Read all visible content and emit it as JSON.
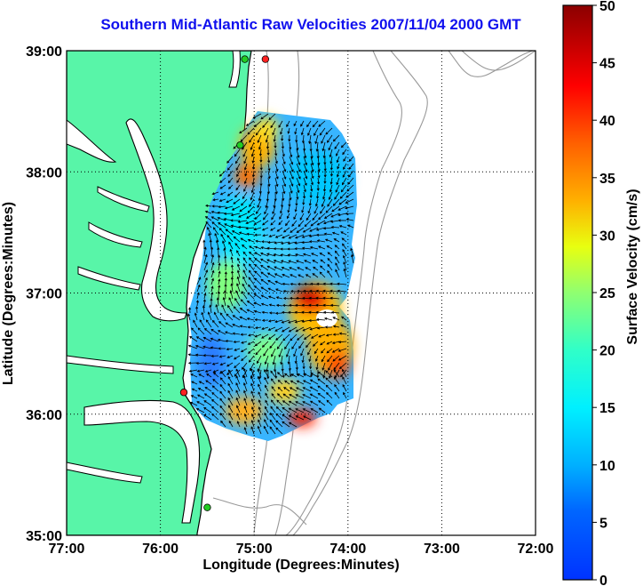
{
  "title": "Southern Mid-Atlantic Raw Velocities 2007/11/04 2000 GMT",
  "map": {
    "xlabel": "Longitude (Degrees:Minutes)",
    "ylabel": "Latitude (Degrees:Minutes)",
    "x_ticks": [
      "77:00",
      "76:00",
      "75:00",
      "74:00",
      "73:00",
      "72:00"
    ],
    "y_ticks": [
      "39:00",
      "38:00",
      "37:00",
      "36:00",
      "35:00"
    ],
    "lon_range": [
      -77,
      -72
    ],
    "lat_range": [
      35,
      39
    ],
    "grid": "dotted",
    "colors": {
      "land": "#58f5a8",
      "coast": "#000000",
      "bathymetry": "#999999"
    },
    "stations": [
      {
        "lon": -74.88,
        "lat": 38.93,
        "color": "#ff2222"
      },
      {
        "lon": -75.1,
        "lat": 38.93,
        "color": "#22cc22"
      },
      {
        "lon": -75.15,
        "lat": 38.22,
        "color": "#22cc22"
      },
      {
        "lon": -75.75,
        "lat": 36.18,
        "color": "#ff2222"
      },
      {
        "lon": -75.5,
        "lat": 35.23,
        "color": "#22cc22"
      }
    ]
  },
  "colorbar": {
    "label": "Surface Velocity (cm/s)",
    "ticks": [
      "0",
      "5",
      "10",
      "15",
      "20",
      "25",
      "30",
      "35",
      "40",
      "45",
      "50"
    ],
    "range": [
      0,
      50
    ],
    "colormap": "jet"
  }
}
